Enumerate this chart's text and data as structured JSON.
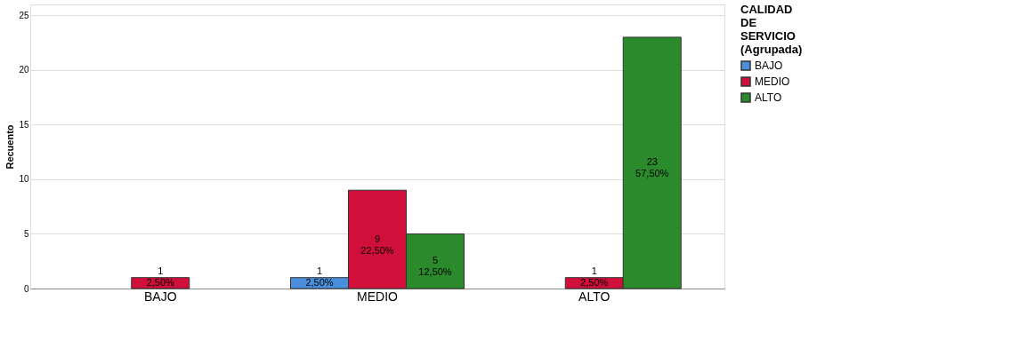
{
  "chart_data": {
    "type": "bar",
    "categories": [
      "BAJO",
      "MEDIO",
      "ALTO"
    ],
    "ylabel": "Recuento",
    "legend_title": "CALIDAD DE SERVICIO (Agrupada)",
    "ylim": [
      0,
      26
    ],
    "yticks": [
      0,
      5,
      10,
      15,
      20,
      25
    ],
    "grid": "y",
    "legend": "right",
    "series": [
      {
        "name": "BAJO",
        "color": "#4a8fdc",
        "values": [
          null,
          1,
          null
        ],
        "value_labels": [
          null,
          "1\n2,50%",
          null
        ]
      },
      {
        "name": "MEDIO",
        "color": "#d0103a",
        "values": [
          1,
          9,
          1
        ],
        "value_labels": [
          "1\n2,50%",
          "9\n22,50%",
          "1\n2,50%"
        ]
      },
      {
        "name": "ALTO",
        "color": "#2b8a2b",
        "values": [
          null,
          5,
          23
        ],
        "value_labels": [
          null,
          "5\n12,50%",
          "23\n57,50%"
        ]
      }
    ]
  }
}
